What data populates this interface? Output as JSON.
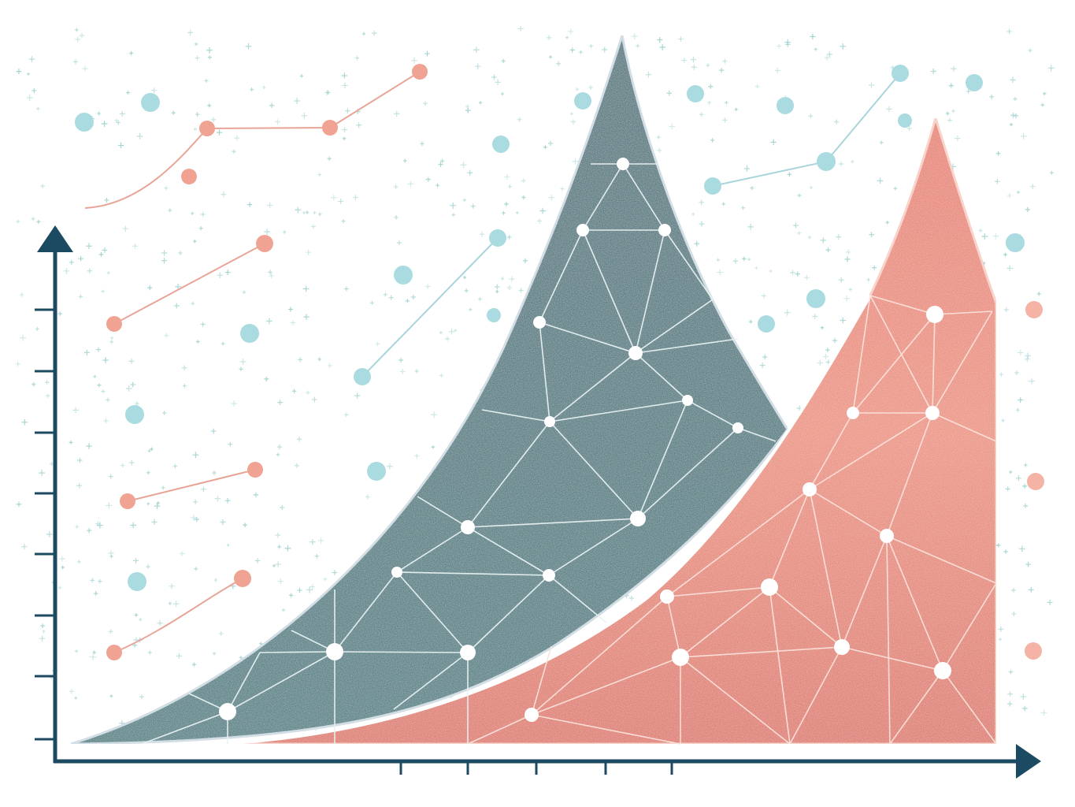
{
  "illustration": {
    "style": "flat network-graph chart illustration",
    "colors": {
      "background": "#ffffff",
      "axis": "#1c4a63",
      "teal_area": "#1d6870",
      "teal_area_light": "#2b8085",
      "coral_area": "#e0705f",
      "coral_area_light": "#ee9a87",
      "mesh_line": "#ffffff",
      "sparkle": "#9fd2cf",
      "coral_dot": "#f0a392",
      "blue_dot": "#a9dbe0",
      "coral_link": "#e8a597",
      "blue_link": "#a9d4dc"
    },
    "icons": [
      "y-axis-arrow-icon",
      "x-axis-arrow-icon"
    ],
    "y_axis_tick_count": 8,
    "x_axis_tick_count": 5
  }
}
